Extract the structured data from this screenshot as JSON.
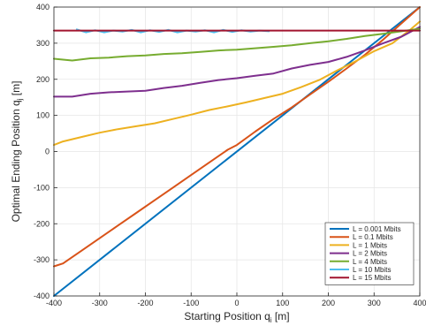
{
  "chart_data": {
    "type": "line",
    "xlabel_main": "Starting Position q",
    "xlabel_sub": "i",
    "xlabel_unit": " [m]",
    "ylabel_main": "Optimal Ending Position q",
    "ylabel_sub": "j",
    "ylabel_unit": " [m]",
    "xlim": [
      -400,
      400
    ],
    "ylim": [
      -400,
      400
    ],
    "xticks": [
      "-400",
      "-300",
      "-200",
      "-100",
      "0",
      "100",
      "200",
      "300",
      "400"
    ],
    "yticks": [
      "-400",
      "-300",
      "-200",
      "-100",
      "0",
      "100",
      "200",
      "300",
      "400"
    ],
    "grid": true,
    "legend_position": "bottom-right",
    "series": [
      {
        "name": "L = 0.001 Mbits",
        "color": "#0072BD",
        "x": [
          -400,
          400
        ],
        "y": [
          -400,
          400
        ]
      },
      {
        "name": "L = 0.1 Mbits",
        "color": "#D95319",
        "x": [
          -400,
          -380,
          -340,
          -300,
          -260,
          -220,
          -180,
          -140,
          -100,
          -60,
          -20,
          0,
          40,
          80,
          120,
          160,
          200,
          240,
          280,
          320,
          360,
          400
        ],
        "y": [
          -318,
          -310,
          -275,
          -240,
          -205,
          -170,
          -135,
          -100,
          -65,
          -30,
          5,
          18,
          55,
          90,
          122,
          158,
          193,
          230,
          268,
          310,
          355,
          400
        ]
      },
      {
        "name": "L = 1 Mbits",
        "color": "#EDB120",
        "x": [
          -400,
          -380,
          -340,
          -300,
          -260,
          -220,
          -180,
          -140,
          -100,
          -60,
          -20,
          20,
          60,
          100,
          140,
          180,
          220,
          260,
          300,
          340,
          380,
          400
        ],
        "y": [
          18,
          28,
          40,
          52,
          62,
          70,
          78,
          90,
          102,
          115,
          125,
          136,
          148,
          160,
          178,
          198,
          225,
          250,
          278,
          300,
          338,
          360
        ]
      },
      {
        "name": "L = 2 Mbits",
        "color": "#7E2F8E",
        "x": [
          -400,
          -360,
          -320,
          -280,
          -240,
          -200,
          -160,
          -120,
          -80,
          -40,
          0,
          40,
          80,
          120,
          160,
          200,
          240,
          280,
          320,
          360,
          400
        ],
        "y": [
          152,
          152,
          160,
          164,
          166,
          168,
          176,
          182,
          190,
          198,
          203,
          210,
          216,
          230,
          240,
          248,
          262,
          280,
          300,
          318,
          345
        ]
      },
      {
        "name": "L = 4 Mbits",
        "color": "#77AC30",
        "x": [
          -400,
          -360,
          -320,
          -280,
          -240,
          -200,
          -160,
          -120,
          -80,
          -40,
          0,
          40,
          80,
          120,
          160,
          200,
          240,
          280,
          320,
          360,
          400
        ],
        "y": [
          257,
          252,
          258,
          260,
          264,
          266,
          270,
          272,
          276,
          280,
          282,
          286,
          290,
          294,
          300,
          305,
          312,
          320,
          326,
          333,
          340
        ]
      },
      {
        "name": "L = 10 Mbits",
        "color": "#4DBEEE",
        "x": [
          -350,
          -330,
          -310,
          -290,
          -270,
          -250,
          -230,
          -210,
          -190,
          -170,
          -150,
          -130,
          -110,
          -90,
          -70,
          -50,
          -30,
          -10,
          10,
          30,
          50,
          70
        ],
        "y": [
          338,
          330,
          336,
          330,
          335,
          332,
          337,
          330,
          336,
          331,
          337,
          330,
          335,
          332,
          336,
          330,
          337,
          331,
          336,
          332,
          335,
          333
        ]
      },
      {
        "name": "L = 15 Mbits",
        "color": "#A2142F",
        "x": [
          -400,
          400
        ],
        "y": [
          335,
          335
        ]
      }
    ]
  }
}
